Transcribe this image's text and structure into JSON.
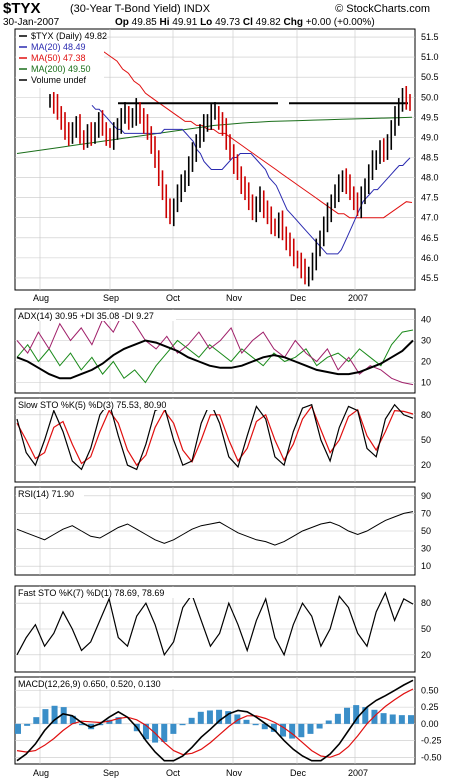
{
  "header": {
    "symbol": "$TYX",
    "name": "(30-Year T-Bond Yield)",
    "exchange": "INDX",
    "credit": "© StockCharts.com",
    "date": "30-Jan-2007",
    "op_label": "Op",
    "op": "49.85",
    "hi_label": "Hi",
    "hi": "49.91",
    "lo_label": "Lo",
    "lo": "49.73",
    "cl_label": "Cl",
    "cl": "49.82",
    "chg_label": "Chg",
    "chg": "+0.00 (+0.00%)"
  },
  "colors": {
    "price_up": "#000000",
    "price_down": "#cc0000",
    "ma20": "#2b2bb0",
    "ma50": "#e01010",
    "ma200": "#1a6e1a",
    "plus_di": "#1a8a1a",
    "minus_di": "#a0206a",
    "adx": "#000000",
    "stoch_d": "#e01010",
    "macd_hist": "#3a8ec8",
    "grid": "#c8c8c8"
  },
  "chart_data": [
    {
      "type": "ohlc",
      "panel": "price",
      "legend": [
        {
          "label": "$TYX (Daily) 49.82",
          "color": "#000000"
        },
        {
          "label": "MA(20) 48.49",
          "color": "#2b2bb0"
        },
        {
          "label": "MA(50) 47.38",
          "color": "#e01010"
        },
        {
          "label": "MA(200) 49.50",
          "color": "#1a6e1a"
        },
        {
          "label": "Volume undef",
          "color": "#000000"
        }
      ],
      "ylim": [
        45.2,
        51.7
      ],
      "yticks": [
        "51.5",
        "51.0",
        "50.5",
        "50.0",
        "49.5",
        "49.0",
        "48.5",
        "48.0",
        "47.5",
        "47.0",
        "46.5",
        "46.0",
        "45.5"
      ],
      "xticks": [
        "Aug",
        "Sep",
        "Oct",
        "Nov",
        "Dec",
        "2007"
      ],
      "close": [
        49.9,
        49.8,
        49.6,
        49.4,
        49.1,
        49.0,
        49.2,
        49.3,
        49.0,
        48.9,
        49.1,
        49.0,
        49.2,
        49.4,
        49.2,
        49.0,
        48.9,
        49.1,
        49.3,
        49.5,
        49.6,
        49.4,
        49.5,
        49.7,
        49.5,
        49.3,
        49.1,
        48.8,
        48.4,
        48.0,
        47.6,
        47.2,
        47.0,
        47.3,
        47.6,
        47.8,
        48.0,
        48.3,
        48.6,
        48.9,
        49.1,
        49.3,
        49.4,
        49.6,
        49.6,
        49.4,
        49.2,
        48.9,
        48.6,
        48.3,
        48.1,
        47.8,
        47.6,
        47.4,
        47.1,
        47.3,
        47.5,
        47.2,
        47.0,
        46.8,
        46.7,
        46.9,
        46.6,
        46.4,
        46.2,
        46.0,
        45.9,
        45.7,
        45.5,
        45.6,
        45.9,
        46.2,
        46.5,
        46.8,
        47.1,
        47.4,
        47.6,
        47.8,
        48.0,
        47.8,
        47.6,
        47.4,
        47.2,
        47.5,
        47.8,
        48.1,
        48.4,
        48.5,
        48.7,
        48.6,
        48.9,
        49.2,
        49.5,
        49.8,
        50.0,
        49.9,
        49.82
      ],
      "ma20": [
        49.8,
        49.7,
        49.7,
        49.6,
        49.5,
        49.4,
        49.3,
        49.2,
        49.2,
        49.1,
        49.1,
        49.1,
        49.1,
        49.1,
        49.1,
        49.1,
        49.1,
        49.1,
        49.1,
        49.1,
        49.2,
        49.2,
        49.2,
        49.2,
        49.2,
        49.2,
        49.1,
        49.0,
        48.9,
        48.7,
        48.6,
        48.4,
        48.3,
        48.2,
        48.2,
        48.2,
        48.2,
        48.3,
        48.4,
        48.5,
        48.5,
        48.6,
        48.6,
        48.6,
        48.6,
        48.5,
        48.4,
        48.3,
        48.2,
        48.0,
        47.9,
        47.8,
        47.6,
        47.4,
        47.2,
        47.1,
        47.0,
        46.9,
        46.8,
        46.7,
        46.6,
        46.5,
        46.4,
        46.3,
        46.2,
        46.1,
        46.1,
        46.1,
        46.1,
        46.2,
        46.4,
        46.6,
        46.8,
        47.0,
        47.2,
        47.4,
        47.5,
        47.6,
        47.7,
        47.7,
        47.8,
        47.9,
        48.0,
        48.1,
        48.2,
        48.3,
        48.3,
        48.4,
        48.49
      ],
      "ma50": [
        51.2,
        51.1,
        51.0,
        50.9,
        50.7,
        50.6,
        50.4,
        50.3,
        50.1,
        50.0,
        49.9,
        49.8,
        49.7,
        49.6,
        49.5,
        49.4,
        49.4,
        49.3,
        49.3,
        49.2,
        49.2,
        49.1,
        49.1,
        49.0,
        48.9,
        48.8,
        48.7,
        48.6,
        48.5,
        48.4,
        48.3,
        48.2,
        48.1,
        48.0,
        47.9,
        47.8,
        47.7,
        47.6,
        47.5,
        47.4,
        47.3,
        47.2,
        47.1,
        47.1,
        47.0,
        47.0,
        47.0,
        47.0,
        47.0,
        47.0,
        47.0,
        47.1,
        47.2,
        47.3,
        47.4,
        47.38
      ],
      "ma200": [
        48.6,
        48.65,
        48.7,
        48.75,
        48.8,
        48.85,
        48.9,
        48.95,
        49.0,
        49.05,
        49.1,
        49.15,
        49.2,
        49.25,
        49.3,
        49.33,
        49.36,
        49.38,
        49.4,
        49.41,
        49.42,
        49.43,
        49.44,
        49.45,
        49.46,
        49.47,
        49.48,
        49.49,
        49.5
      ],
      "resistance": 49.85
    },
    {
      "type": "line",
      "panel": "adx",
      "title": "ADX(14) 30.95 +DI 35.08 -DI 9.27",
      "series": [
        {
          "name": "ADX(14) 30.95",
          "values": [
            22,
            20,
            17,
            14,
            12,
            12,
            14,
            16,
            19,
            23,
            26,
            28,
            30,
            29,
            27,
            25,
            22,
            20,
            18,
            17,
            17,
            18,
            20,
            22,
            23,
            22,
            20,
            18,
            16,
            15,
            14,
            14,
            15,
            17,
            19,
            22,
            25,
            30
          ]
        },
        {
          "name": "+DI 35.08",
          "values": [
            22,
            28,
            20,
            26,
            18,
            24,
            16,
            22,
            14,
            20,
            12,
            16,
            10,
            18,
            24,
            30,
            26,
            22,
            28,
            24,
            20,
            26,
            22,
            18,
            24,
            20,
            22,
            26,
            18,
            22,
            24,
            20,
            26,
            22,
            18,
            28,
            34,
            35
          ]
        },
        {
          "name": "-DI 9.27",
          "values": [
            30,
            24,
            34,
            26,
            38,
            30,
            36,
            28,
            40,
            34,
            44,
            38,
            30,
            26,
            32,
            24,
            28,
            34,
            26,
            30,
            36,
            24,
            30,
            34,
            26,
            22,
            30,
            24,
            20,
            26,
            16,
            22,
            14,
            18,
            16,
            12,
            10,
            9
          ]
        }
      ],
      "ylim": [
        5,
        45
      ],
      "yticks": [
        "40",
        "30",
        "20",
        "10"
      ]
    },
    {
      "type": "line",
      "panel": "slow_sto",
      "title": "Slow STO %K(5) %D(3) 75.53, 80.90",
      "series": [
        {
          "name": "%K(5) 75.53",
          "values": [
            75,
            35,
            20,
            50,
            85,
            60,
            25,
            15,
            40,
            80,
            95,
            55,
            20,
            15,
            45,
            85,
            90,
            50,
            20,
            25,
            70,
            95,
            70,
            30,
            18,
            55,
            90,
            75,
            30,
            20,
            60,
            88,
            92,
            50,
            25,
            65,
            90,
            85,
            40,
            30,
            75,
            92,
            80,
            76
          ]
        },
        {
          "name": "%D(3) 80.90",
          "values": [
            70,
            50,
            28,
            35,
            65,
            72,
            45,
            22,
            30,
            60,
            85,
            70,
            38,
            20,
            32,
            65,
            85,
            70,
            38,
            24,
            50,
            80,
            80,
            50,
            25,
            40,
            72,
            80,
            50,
            26,
            45,
            75,
            90,
            62,
            35,
            50,
            78,
            86,
            55,
            38,
            60,
            85,
            84,
            81
          ]
        }
      ],
      "ylim": [
        0,
        100
      ],
      "yticks": [
        "80",
        "50",
        "20"
      ]
    },
    {
      "type": "line",
      "panel": "rsi",
      "title": "RSI(14) 71.90",
      "series": [
        {
          "name": "RSI(14) 71.90",
          "values": [
            52,
            48,
            44,
            40,
            46,
            52,
            56,
            50,
            44,
            42,
            48,
            54,
            58,
            52,
            46,
            40,
            36,
            40,
            46,
            52,
            56,
            58,
            60,
            54,
            48,
            44,
            40,
            38,
            34,
            38,
            44,
            50,
            54,
            58,
            60,
            56,
            50,
            46,
            50,
            56,
            62,
            66,
            70,
            72
          ]
        }
      ],
      "ylim": [
        0,
        100
      ],
      "yticks": [
        "90",
        "70",
        "50",
        "30",
        "10"
      ]
    },
    {
      "type": "line",
      "panel": "fast_sto",
      "title": "Fast STO %K(7) %D(1) 78.69, 78.69",
      "series": [
        {
          "name": "%K(7) 78.69",
          "values": [
            20,
            40,
            55,
            30,
            45,
            70,
            50,
            25,
            35,
            60,
            85,
            40,
            30,
            65,
            80,
            55,
            20,
            35,
            75,
            90,
            60,
            30,
            45,
            80,
            55,
            25,
            60,
            85,
            40,
            20,
            55,
            80,
            65,
            30,
            50,
            88,
            75,
            45,
            30,
            70,
            92,
            60,
            85,
            79
          ]
        }
      ],
      "ylim": [
        0,
        100
      ],
      "yticks": [
        "80",
        "50",
        "20"
      ]
    },
    {
      "type": "line",
      "panel": "macd",
      "title": "MACD(12,26,9) 0.650, 0.520, 0.130",
      "series": [
        {
          "name": "MACD(12,26,9) 0.650",
          "values": [
            -0.55,
            -0.45,
            -0.3,
            -0.1,
            0.05,
            0.15,
            0.12,
            0.02,
            -0.05,
            0.0,
            0.1,
            0.18,
            0.1,
            -0.05,
            -0.25,
            -0.42,
            -0.55,
            -0.55,
            -0.48,
            -0.35,
            -0.2,
            -0.08,
            0.05,
            0.15,
            0.2,
            0.18,
            0.1,
            0.0,
            -0.1,
            -0.25,
            -0.38,
            -0.48,
            -0.55,
            -0.55,
            -0.45,
            -0.3,
            -0.1,
            0.1,
            0.25,
            0.35,
            0.42,
            0.5,
            0.58,
            0.65
          ]
        },
        {
          "name": "0.520",
          "values": [
            -0.4,
            -0.42,
            -0.4,
            -0.32,
            -0.22,
            -0.1,
            0.0,
            0.04,
            0.03,
            0.02,
            0.04,
            0.08,
            0.1,
            0.06,
            -0.02,
            -0.14,
            -0.28,
            -0.4,
            -0.46,
            -0.44,
            -0.38,
            -0.28,
            -0.16,
            -0.04,
            0.06,
            0.12,
            0.12,
            0.08,
            0.02,
            -0.06,
            -0.16,
            -0.28,
            -0.4,
            -0.48,
            -0.5,
            -0.45,
            -0.34,
            -0.18,
            0.0,
            0.14,
            0.26,
            0.36,
            0.45,
            0.52
          ]
        },
        {
          "name": "0.130",
          "values": [
            -0.15,
            -0.03,
            0.1,
            0.22,
            0.27,
            0.25,
            0.12,
            -0.02,
            -0.08,
            -0.02,
            0.06,
            0.1,
            0.0,
            -0.11,
            -0.23,
            -0.28,
            -0.27,
            -0.15,
            -0.02,
            0.09,
            0.18,
            0.2,
            0.21,
            0.19,
            0.14,
            0.06,
            -0.02,
            -0.08,
            -0.12,
            -0.19,
            -0.22,
            -0.2,
            -0.15,
            -0.07,
            0.05,
            0.15,
            0.24,
            0.28,
            0.25,
            0.21,
            0.16,
            0.14,
            0.13,
            0.13
          ]
        }
      ],
      "ylim": [
        -0.6,
        0.7
      ],
      "yticks": [
        "0.50",
        "0.25",
        "0.00",
        "-0.25",
        "-0.50"
      ],
      "xticks": [
        "Aug",
        "Sep",
        "Oct",
        "Nov",
        "Dec",
        "2007"
      ]
    }
  ]
}
